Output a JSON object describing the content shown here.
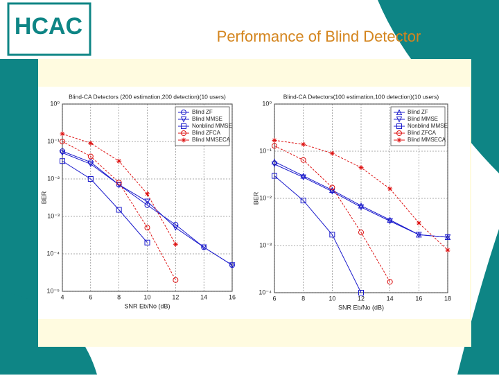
{
  "slide": {
    "title": "Performance of Blind Detector",
    "logo": "HCAC"
  },
  "chart_data": [
    {
      "type": "line",
      "title": "Blind-CA Detectors (200 estimation,200 detection)(10 users)",
      "x_label": "SNR Eb/No (dB)",
      "y_label": "BER",
      "log_y": true,
      "grid": true,
      "legend": "upper right",
      "xlim": [
        4,
        16
      ],
      "xticks": [
        4,
        6,
        8,
        10,
        12,
        14,
        16
      ],
      "ylim": [
        1e-05,
        1
      ],
      "yticks": [
        {
          "value": 1,
          "label": "10⁰"
        },
        {
          "value": 0.1,
          "label": "10⁻¹"
        },
        {
          "value": 0.01,
          "label": "10⁻²"
        },
        {
          "value": 0.001,
          "label": "10⁻³"
        },
        {
          "value": 0.0001,
          "label": "10⁻⁴"
        },
        {
          "value": 1e-05,
          "label": "10⁻⁵"
        }
      ],
      "x": [
        4,
        6,
        8,
        10,
        12,
        14,
        16
      ],
      "series": [
        {
          "name": "Blind ZF",
          "color": "#1a1acc",
          "marker": "circle",
          "values": [
            0.055,
            0.028,
            0.007,
            0.002,
            0.0006,
            0.00015,
            5e-05
          ]
        },
        {
          "name": "Blind MMSE",
          "color": "#1a1acc",
          "marker": "triangle-down",
          "values": [
            0.05,
            0.025,
            0.007,
            0.0025,
            0.0005,
            0.00015,
            5e-05
          ]
        },
        {
          "name": "Nonblind MMSE",
          "color": "#1a1acc",
          "marker": "square",
          "values": [
            0.03,
            0.01,
            0.0015,
            0.0002,
            null,
            null,
            null
          ]
        },
        {
          "name": "Blind ZFCA",
          "color": "#dd1111",
          "marker": "circle",
          "values": [
            0.1,
            0.04,
            0.008,
            0.0005,
            2e-05,
            null,
            null
          ]
        },
        {
          "name": "Blind MMSECA",
          "color": "#dd1111",
          "marker": "star",
          "values": [
            0.16,
            0.09,
            0.03,
            0.004,
            0.00018,
            null,
            null
          ]
        }
      ]
    },
    {
      "type": "line",
      "title": "Blind-CA Detectors(100 estimation,100 detection)(10 users)",
      "x_label": "SNR Eb/No (dB)",
      "y_label": "BER",
      "log_y": true,
      "grid": true,
      "legend": "upper right",
      "xlim": [
        6,
        18
      ],
      "xticks": [
        6,
        8,
        10,
        12,
        14,
        16,
        18
      ],
      "ylim": [
        0.0001,
        1
      ],
      "yticks": [
        {
          "value": 1,
          "label": "10⁰"
        },
        {
          "value": 0.1,
          "label": "10⁻¹"
        },
        {
          "value": 0.01,
          "label": "10⁻²"
        },
        {
          "value": 0.001,
          "label": "10⁻³"
        },
        {
          "value": 0.0001,
          "label": "10⁻⁴"
        }
      ],
      "x": [
        6,
        8,
        10,
        12,
        14,
        16,
        18
      ],
      "series": [
        {
          "name": "Blind ZF",
          "color": "#1a1acc",
          "marker": "triangle-up",
          "values": [
            0.06,
            0.03,
            0.015,
            0.007,
            0.0035,
            0.0017,
            0.0015
          ]
        },
        {
          "name": "Blind MMSE",
          "color": "#1a1acc",
          "marker": "triangle-down",
          "values": [
            0.053,
            0.028,
            0.014,
            0.0065,
            0.0033,
            0.0017,
            0.0015
          ]
        },
        {
          "name": "Nonblind MMSE",
          "color": "#1a1acc",
          "marker": "square",
          "values": [
            0.03,
            0.009,
            0.0017,
            0.0001,
            null,
            null,
            null
          ]
        },
        {
          "name": "Blind ZFCA",
          "color": "#dd1111",
          "marker": "circle",
          "values": [
            0.13,
            0.065,
            0.017,
            0.0019,
            0.00017,
            null,
            null
          ]
        },
        {
          "name": "Blind MMSECA",
          "color": "#dd1111",
          "marker": "star",
          "values": [
            0.17,
            0.14,
            0.09,
            0.045,
            0.016,
            0.003,
            0.0008
          ]
        }
      ]
    }
  ]
}
